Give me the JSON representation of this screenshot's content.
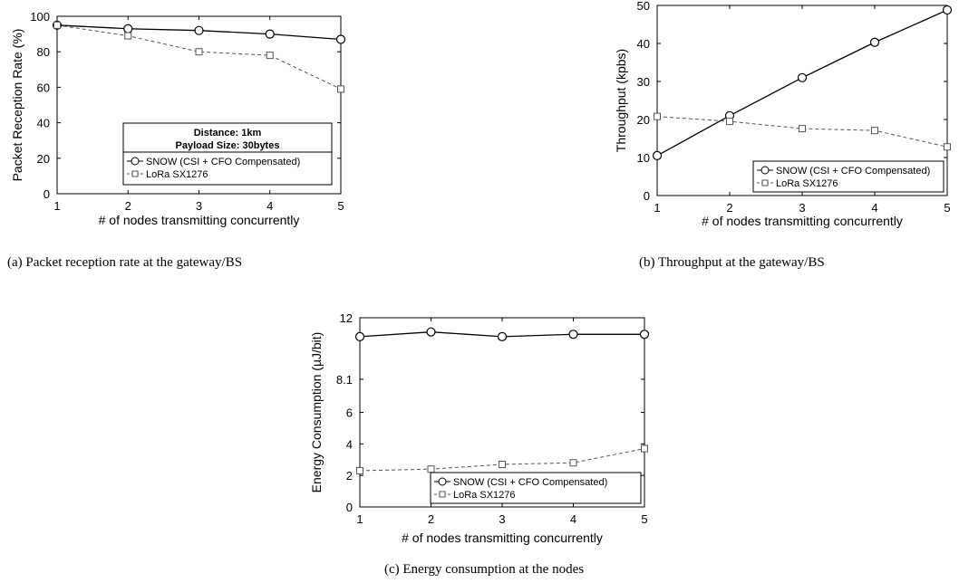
{
  "chart_data": [
    {
      "type": "line",
      "caption": "(a)  Packet reception rate at the gateway/BS",
      "xlabel": "# of nodes transmitting concurrently",
      "ylabel": "Packet Reception Rate (%)",
      "x": [
        1,
        2,
        3,
        4,
        5
      ],
      "xlim": [
        1,
        5
      ],
      "ylim": [
        0,
        100
      ],
      "yticks": [
        0,
        20,
        40,
        60,
        80,
        100
      ],
      "grid": false,
      "legend_position": "bottom-right",
      "legend_title": [
        "Distance: 1km",
        "Payload Size: 30bytes"
      ],
      "series": [
        {
          "name": "SNOW (CSI + CFO Compensated)",
          "values": [
            95,
            93,
            92,
            90,
            87
          ],
          "style": "solid",
          "marker": "circle"
        },
        {
          "name": "LoRa SX1276",
          "values": [
            95,
            89,
            80,
            78,
            59
          ],
          "style": "dashed",
          "marker": "square"
        }
      ]
    },
    {
      "type": "line",
      "caption": "(b)  Throughput at the gateway/BS",
      "xlabel": "# of nodes transmitting concurrently",
      "ylabel": "Throughput (kpbs)",
      "x": [
        1,
        2,
        3,
        4,
        5
      ],
      "xlim": [
        1,
        5
      ],
      "ylim": [
        0,
        50
      ],
      "yticks": [
        0,
        10,
        20,
        30,
        40,
        50
      ],
      "grid": false,
      "legend_position": "bottom-right",
      "series": [
        {
          "name": "SNOW (CSI + CFO Compensated)",
          "values": [
            10.5,
            21,
            31,
            40.3,
            48.8
          ],
          "style": "solid",
          "marker": "circle"
        },
        {
          "name": "LoRa SX1276",
          "values": [
            20.8,
            19.5,
            17.6,
            17.1,
            12.8
          ],
          "style": "dashed",
          "marker": "square"
        }
      ]
    },
    {
      "type": "line",
      "caption": "(c)  Energy consumption at the nodes",
      "xlabel": "# of nodes transmitting concurrently",
      "ylabel": "Energy Consumption (µJ/bit)",
      "x": [
        1,
        2,
        3,
        4,
        5
      ],
      "xlim": [
        1,
        5
      ],
      "ylim": [
        0,
        12
      ],
      "yticks": [
        0,
        2,
        4,
        6,
        8.1,
        12
      ],
      "grid": false,
      "legend_position": "bottom-right",
      "series": [
        {
          "name": "SNOW (CSI + CFO Compensated)",
          "values": [
            10.8,
            11.1,
            10.8,
            10.95,
            10.95
          ],
          "style": "solid",
          "marker": "circle"
        },
        {
          "name": "LoRa SX1276",
          "values": [
            2.3,
            2.4,
            2.7,
            2.8,
            3.7
          ],
          "style": "dashed",
          "marker": "square"
        }
      ]
    }
  ]
}
